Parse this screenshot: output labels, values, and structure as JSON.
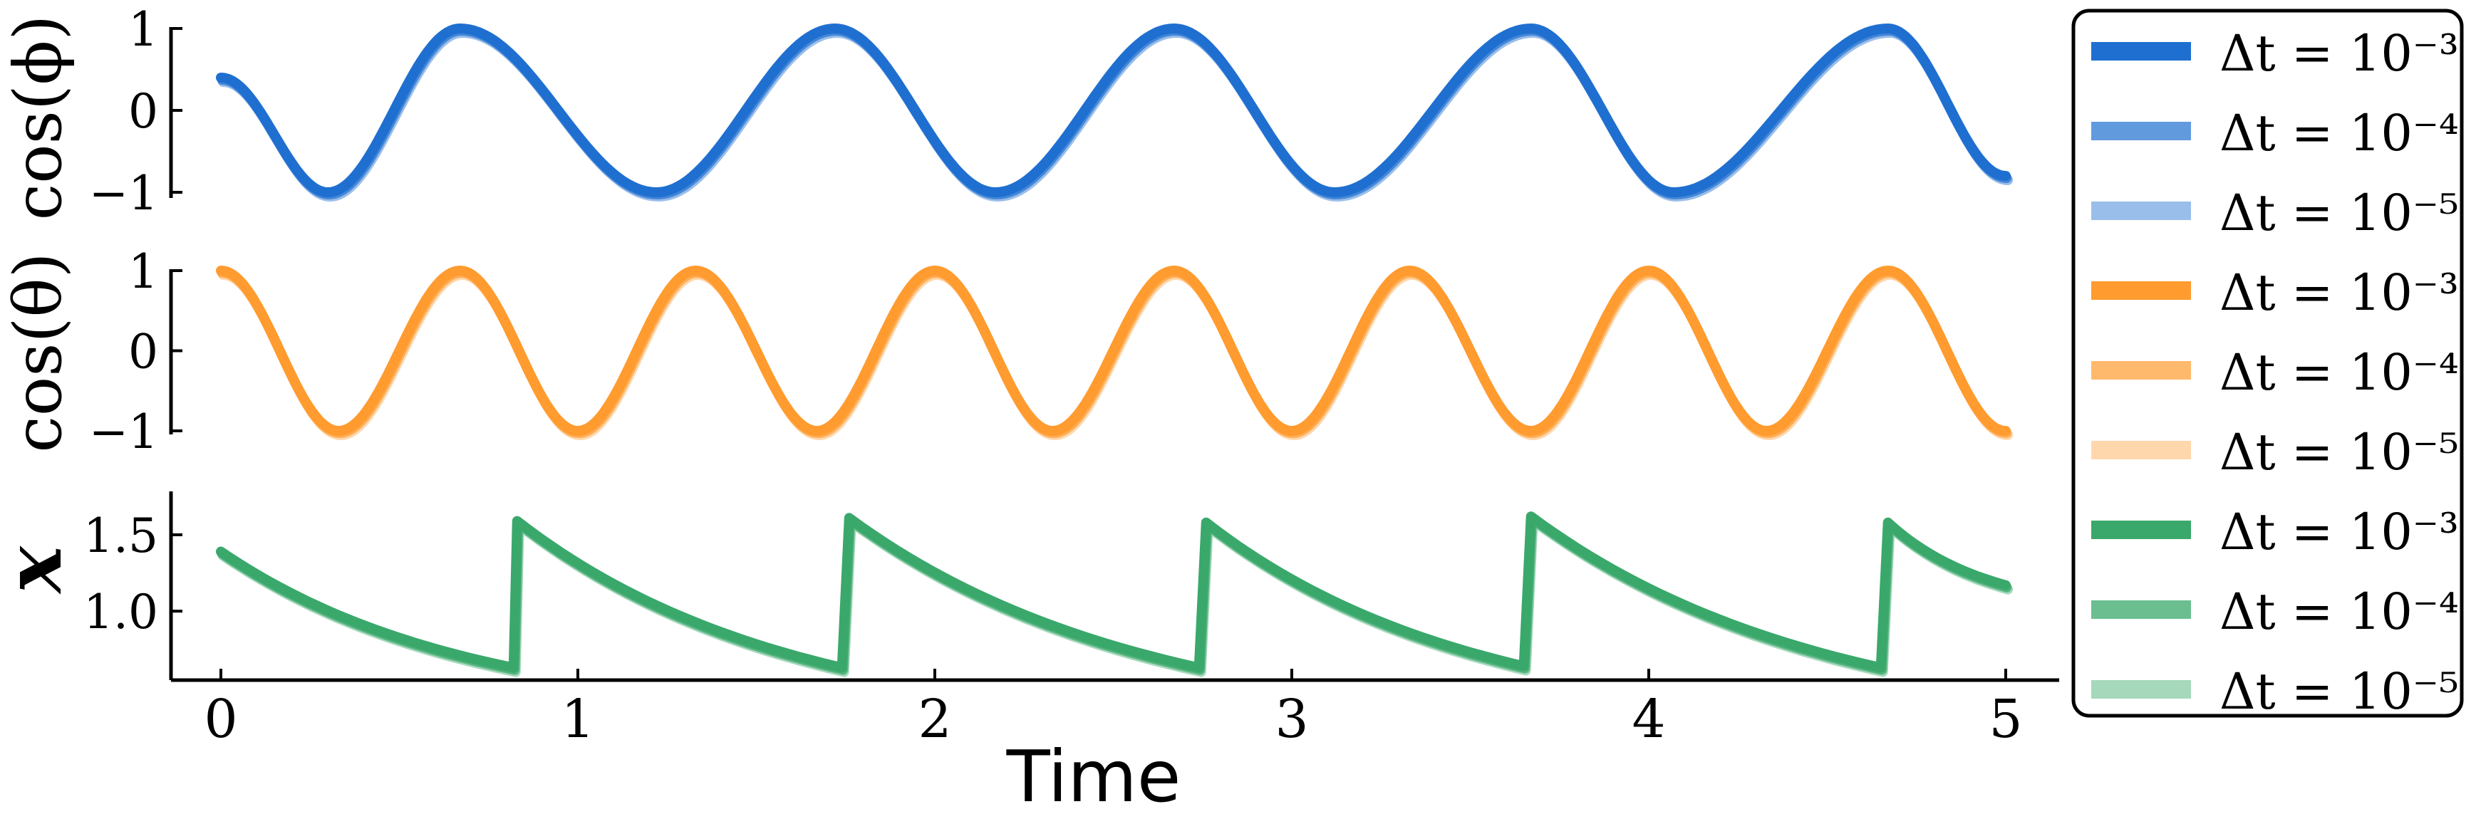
{
  "chart_data": {
    "type": "line",
    "xlabel": "Time",
    "xlim": [
      -0.15,
      5.15
    ],
    "x_ticks": [
      "0",
      "1",
      "2",
      "3",
      "4",
      "5"
    ],
    "panels": [
      {
        "id": "cos_phi",
        "ylabel": "cos(ϕ)",
        "ylim": [
          -1,
          1
        ],
        "y_ticks": [
          {
            "v": 1,
            "label": "1"
          },
          {
            "v": 0,
            "label": "0"
          },
          {
            "v": -1,
            "label": "−1"
          }
        ],
        "series": [
          {
            "name": "Δt = 10⁻³",
            "color": "#1f6fd0",
            "opacity": 1.0
          },
          {
            "name": "Δt = 10⁻⁴",
            "color": "#1f6fd0",
            "opacity": 0.7
          },
          {
            "name": "Δt = 10⁻⁵",
            "color": "#1f6fd0",
            "opacity": 0.45
          }
        ],
        "x": [
          0,
          0.3,
          0.67,
          1.22,
          1.72,
          2.17,
          2.67,
          3.12,
          3.67,
          4.07,
          4.67,
          5.0
        ],
        "y": [
          0.4,
          -1,
          1,
          -1,
          1,
          -1,
          1,
          -1,
          1,
          -1,
          1,
          -0.8
        ]
      },
      {
        "id": "cos_theta",
        "ylabel": "cos(θ)",
        "ylim": [
          -1,
          1
        ],
        "y_ticks": [
          {
            "v": 1,
            "label": "1"
          },
          {
            "v": 0,
            "label": "0"
          },
          {
            "v": -1,
            "label": "−1"
          }
        ],
        "series": [
          {
            "name": "Δt = 10⁻³",
            "color": "#ff9b2f",
            "opacity": 1.0
          },
          {
            "name": "Δt = 10⁻⁴",
            "color": "#ff9b2f",
            "opacity": 0.7
          },
          {
            "name": "Δt = 10⁻⁵",
            "color": "#ff9b2f",
            "opacity": 0.4
          }
        ],
        "x": [
          0,
          0.33,
          0.67,
          1.0,
          1.33,
          1.67,
          2.0,
          2.33,
          2.67,
          3.0,
          3.33,
          3.67,
          4.0,
          4.33,
          4.67,
          5.0
        ],
        "y": [
          1,
          -1,
          1,
          -1,
          1,
          -1,
          1,
          -1,
          1,
          -1,
          1,
          -1,
          1,
          -1,
          1,
          -1
        ]
      },
      {
        "id": "x",
        "ylabel": "x",
        "ylim": [
          0.6,
          1.7
        ],
        "y_ticks": [
          {
            "v": 1.5,
            "label": "1.5"
          },
          {
            "v": 1.0,
            "label": "1.0"
          }
        ],
        "series": [
          {
            "name": "Δt = 10⁻³",
            "color": "#3aa86b",
            "opacity": 1.0
          },
          {
            "name": "Δt = 10⁻⁴",
            "color": "#3aa86b",
            "opacity": 0.75
          },
          {
            "name": "Δt = 10⁻⁵",
            "color": "#3aa86b",
            "opacity": 0.45
          }
        ],
        "x": [
          0,
          0.82,
          0.83,
          1.74,
          1.76,
          2.74,
          2.76,
          3.65,
          3.67,
          4.65,
          4.67,
          5.0
        ],
        "y": [
          1.39,
          0.63,
          1.59,
          0.63,
          1.61,
          0.63,
          1.58,
          0.64,
          1.62,
          0.63,
          1.58,
          1.17
        ]
      }
    ],
    "legend": {
      "placement": "right"
    }
  }
}
